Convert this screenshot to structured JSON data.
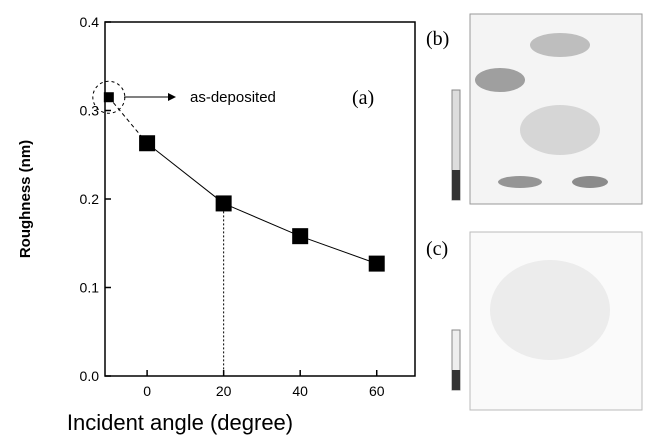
{
  "chart_data": {
    "type": "line",
    "x": [
      -10,
      0,
      20,
      40,
      60
    ],
    "series": [
      {
        "color": "#000000",
        "values": [
          0.315,
          0.263,
          0.195,
          0.158,
          0.127
        ]
      }
    ],
    "xlabel": "Incident angle (degree)",
    "ylabel": "Roughness (nm)",
    "xlim": [
      -11,
      70
    ],
    "xticks": [
      0,
      20,
      40,
      60
    ],
    "ylim": [
      0,
      0.4
    ],
    "yticks": [
      {
        "value": 0,
        "label": "0.0"
      },
      0.1,
      0.2,
      0.3,
      0.4
    ],
    "annotations": [
      "as-deposited",
      "(a)"
    ]
  },
  "panels": [
    {
      "label": "(b)"
    },
    {
      "label": "(c)"
    }
  ]
}
